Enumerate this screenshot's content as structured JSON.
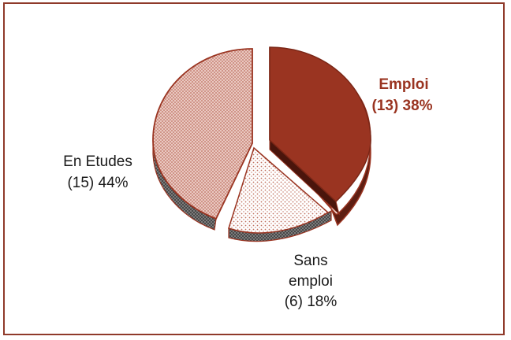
{
  "colors": {
    "frame": "#8f3a2a",
    "emploi_face": "#9a3421",
    "emploi_side": "#5e1e12",
    "outline": "#9a3421",
    "label_highlight": "#9a3421"
  },
  "chart_data": {
    "type": "pie",
    "style": "3d-exploded",
    "slices": [
      {
        "key": "emploi",
        "name": "Emploi",
        "count": 13,
        "percent": 38,
        "label_line1": "Emploi",
        "label_line2": "(13) 38%",
        "fill": "solid-dark-red",
        "highlight": true
      },
      {
        "key": "sans_emploi",
        "name": "Sans emploi",
        "count": 6,
        "percent": 18,
        "label_line1": "Sans",
        "label_line2": "emploi",
        "label_line3": "(6) 18%",
        "fill": "dotted-light"
      },
      {
        "key": "en_etudes",
        "name": "En Etudes",
        "count": 15,
        "percent": 44,
        "label_line1": "En Etudes",
        "label_line2": "(15) 44%",
        "fill": "cross-hatch-pink"
      }
    ]
  }
}
